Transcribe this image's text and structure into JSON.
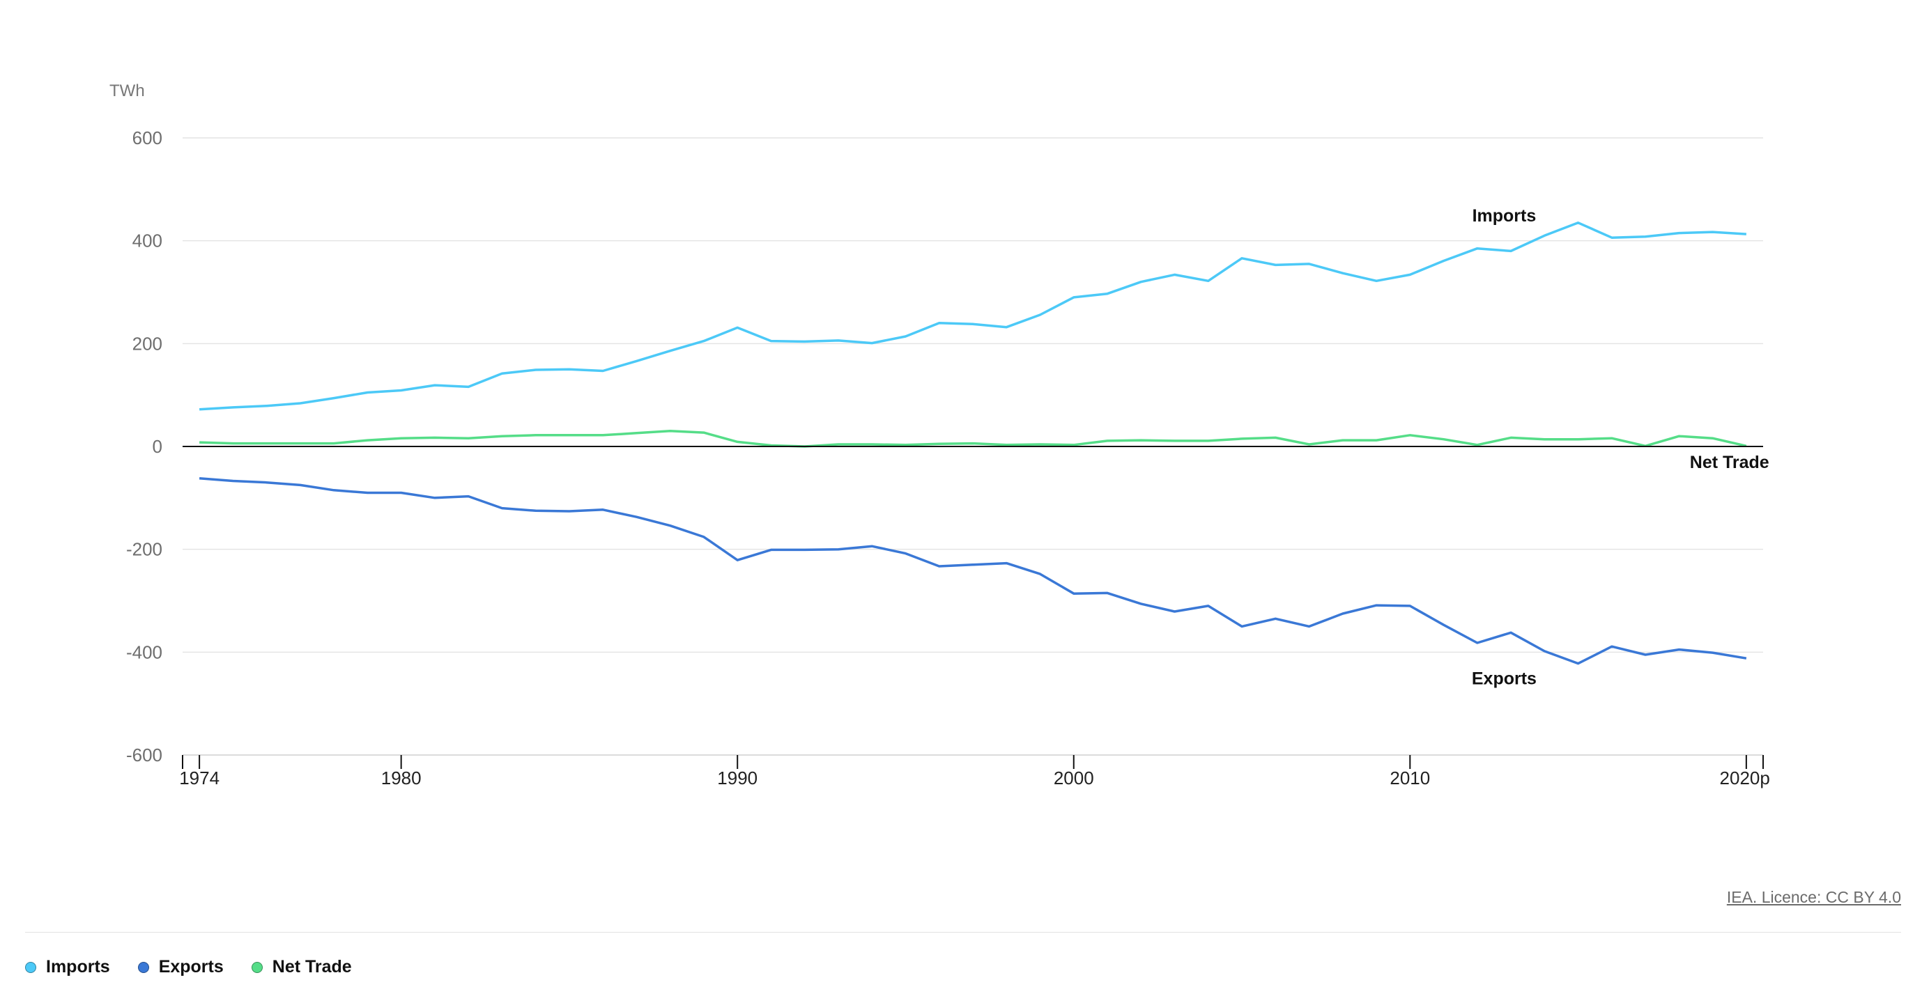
{
  "chart_data": {
    "type": "line",
    "unit_label": "TWh",
    "ylim": [
      -600,
      600
    ],
    "yticks": [
      600,
      400,
      200,
      0,
      -200,
      -400,
      -600
    ],
    "xlim": [
      1973.5,
      2020.5
    ],
    "xticks": [
      {
        "value": 1974,
        "label": "1974"
      },
      {
        "value": 1980,
        "label": "1980"
      },
      {
        "value": 1990,
        "label": "1990"
      },
      {
        "value": 2000,
        "label": "2000"
      },
      {
        "value": 2010,
        "label": "2010"
      },
      {
        "value": 2020,
        "label": "2020p"
      }
    ],
    "x": [
      1974,
      1975,
      1976,
      1977,
      1978,
      1979,
      1980,
      1981,
      1982,
      1983,
      1984,
      1985,
      1986,
      1987,
      1988,
      1989,
      1990,
      1991,
      1992,
      1993,
      1994,
      1995,
      1996,
      1997,
      1998,
      1999,
      2000,
      2001,
      2002,
      2003,
      2004,
      2005,
      2006,
      2007,
      2008,
      2009,
      2010,
      2011,
      2012,
      2013,
      2014,
      2015,
      2016,
      2017,
      2018,
      2019,
      2020
    ],
    "series": [
      {
        "name": "Imports",
        "color": "#4cc9f7",
        "values": [
          72,
          76,
          79,
          84,
          94,
          105,
          109,
          119,
          116,
          142,
          149,
          150,
          147,
          166,
          186,
          205,
          231,
          205,
          204,
          206,
          201,
          214,
          240,
          238,
          232,
          256,
          290,
          297,
          320,
          334,
          322,
          366,
          353,
          355,
          337,
          322,
          334,
          361,
          385,
          380,
          410,
          435,
          406,
          408,
          415,
          417,
          413
        ]
      },
      {
        "name": "Exports",
        "color": "#3a78d6",
        "values": [
          -62,
          -67,
          -70,
          -75,
          -85,
          -90,
          -90,
          -100,
          -97,
          -120,
          -125,
          -126,
          -123,
          -137,
          -154,
          -176,
          -221,
          -201,
          -201,
          -200,
          -194,
          -208,
          -233,
          -230,
          -227,
          -248,
          -286,
          -285,
          -306,
          -321,
          -310,
          -350,
          -335,
          -350,
          -325,
          -309,
          -310,
          -347,
          -382,
          -362,
          -398,
          -422,
          -389,
          -405,
          -395,
          -401,
          -412
        ]
      },
      {
        "name": "Net Trade",
        "color": "#55dd88",
        "values": [
          8,
          6,
          6,
          6,
          6,
          12,
          16,
          17,
          16,
          20,
          22,
          22,
          22,
          26,
          30,
          27,
          9,
          2,
          0,
          4,
          4,
          3,
          5,
          6,
          3,
          4,
          3,
          11,
          12,
          11,
          11,
          15,
          17,
          4,
          12,
          12,
          22,
          14,
          3,
          17,
          14,
          14,
          16,
          1,
          20,
          16,
          1
        ]
      }
    ],
    "annotations": [
      {
        "text": "Imports",
        "x": 2012.8,
        "y": 450
      },
      {
        "text": "Net Trade",
        "x": 2019.5,
        "y": -30
      },
      {
        "text": "Exports",
        "x": 2012.8,
        "y": -450
      }
    ],
    "grid": true,
    "legend_position": "bottom-left"
  },
  "credit": "IEA. Licence: CC BY 4.0",
  "legend": [
    {
      "label": "Imports",
      "color": "#4cc9f7"
    },
    {
      "label": "Exports",
      "color": "#3a78d6"
    },
    {
      "label": "Net Trade",
      "color": "#55dd88"
    }
  ]
}
